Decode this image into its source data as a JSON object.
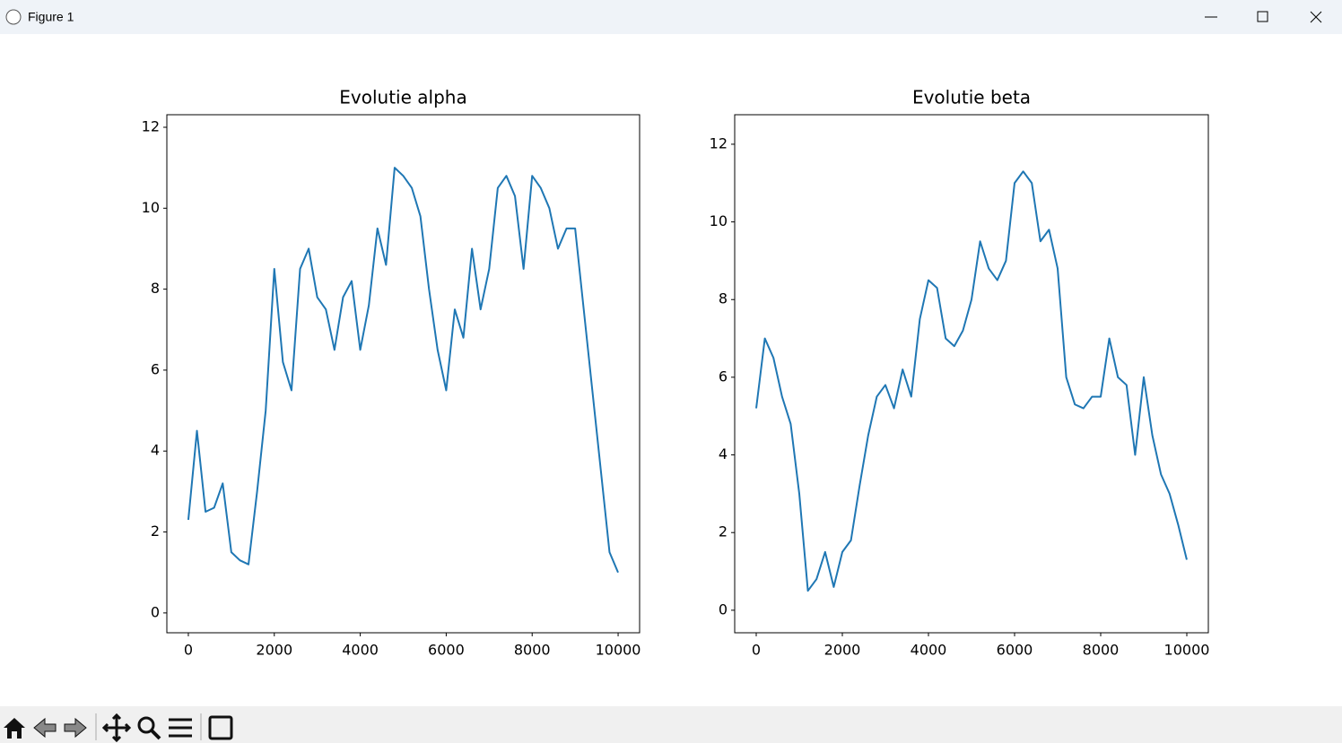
{
  "window": {
    "title": "Figure 1"
  },
  "chart_data": [
    {
      "type": "line",
      "title": "Evolutie alpha",
      "x": [
        0,
        200,
        400,
        600,
        800,
        1000,
        1200,
        1400,
        1600,
        1800,
        2000,
        2200,
        2400,
        2600,
        2800,
        3000,
        3200,
        3400,
        3600,
        3800,
        4000,
        4200,
        4400,
        4600,
        4800,
        5000,
        5200,
        5400,
        5600,
        5800,
        6000,
        6200,
        6400,
        6600,
        6800,
        7000,
        7200,
        7400,
        7600,
        7800,
        8000,
        8200,
        8400,
        8600,
        8800,
        9000,
        9200,
        9400,
        9600,
        9800,
        9999
      ],
      "series": [
        {
          "color": "#1f77b4",
          "values": [
            2.3,
            4.5,
            2.5,
            2.6,
            3.2,
            1.5,
            1.3,
            1.2,
            3.0,
            5.0,
            8.5,
            6.2,
            5.5,
            8.5,
            9.0,
            7.8,
            7.5,
            6.5,
            7.8,
            8.2,
            6.5,
            7.6,
            9.5,
            8.6,
            11.0,
            10.8,
            10.5,
            9.8,
            8.0,
            6.5,
            5.5,
            7.5,
            6.8,
            9.0,
            7.5,
            8.5,
            10.5,
            10.8,
            10.3,
            8.5,
            10.8,
            10.5,
            10.0,
            9.0,
            9.5,
            9.5,
            7.5,
            5.5,
            3.5,
            1.5,
            1.0
          ]
        }
      ],
      "xlim": [
        -500,
        10500
      ],
      "ylim": [
        -0.49,
        12.31
      ],
      "xticks": [
        0,
        2000,
        4000,
        6000,
        8000,
        10000
      ],
      "yticks": [
        0,
        2,
        4,
        6,
        8,
        10,
        12
      ]
    },
    {
      "type": "line",
      "title": "Evolutie beta",
      "x": [
        0,
        200,
        400,
        600,
        800,
        1000,
        1200,
        1400,
        1600,
        1800,
        2000,
        2200,
        2400,
        2600,
        2800,
        3000,
        3200,
        3400,
        3600,
        3800,
        4000,
        4200,
        4400,
        4600,
        4800,
        5000,
        5200,
        5400,
        5600,
        5800,
        6000,
        6200,
        6400,
        6600,
        6800,
        7000,
        7200,
        7400,
        7600,
        7800,
        8000,
        8200,
        8400,
        8600,
        8800,
        9000,
        9200,
        9400,
        9600,
        9800,
        9999
      ],
      "series": [
        {
          "color": "#1f77b4",
          "values": [
            5.2,
            7.0,
            6.5,
            5.5,
            4.8,
            3.0,
            0.5,
            0.8,
            1.5,
            0.6,
            1.5,
            1.8,
            3.2,
            4.5,
            5.5,
            5.8,
            5.2,
            6.2,
            5.5,
            7.5,
            8.5,
            8.3,
            7.0,
            6.8,
            7.2,
            8.0,
            9.5,
            8.8,
            8.5,
            9.0,
            11.0,
            11.3,
            11.0,
            9.5,
            9.8,
            8.8,
            6.0,
            5.3,
            5.2,
            5.5,
            5.5,
            7.0,
            6.0,
            5.8,
            4.0,
            6.0,
            4.5,
            3.5,
            3.0,
            2.2,
            1.3
          ]
        }
      ],
      "xlim": [
        -500,
        10500
      ],
      "ylim": [
        -0.58,
        12.76
      ],
      "xticks": [
        0,
        2000,
        4000,
        6000,
        8000,
        10000
      ],
      "yticks": [
        0,
        2,
        4,
        6,
        8,
        10,
        12
      ]
    }
  ]
}
